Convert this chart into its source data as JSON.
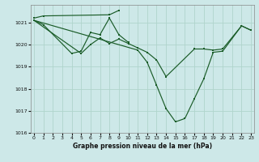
{
  "xlabel": "Graphe pression niveau de la mer (hPa)",
  "bg_color": "#cde8e8",
  "grid_color": "#b0d4cc",
  "line_color": "#1a5c28",
  "ylim": [
    1016.0,
    1021.8
  ],
  "xlim": [
    -0.3,
    23.3
  ],
  "yticks": [
    1016,
    1017,
    1018,
    1019,
    1020,
    1021
  ],
  "xticks": [
    0,
    1,
    2,
    3,
    4,
    5,
    6,
    7,
    8,
    9,
    10,
    11,
    12,
    13,
    14,
    15,
    16,
    17,
    18,
    19,
    20,
    21,
    22,
    23
  ],
  "line1": {
    "x": [
      0,
      1,
      8,
      9
    ],
    "y": [
      1021.2,
      1021.3,
      1021.35,
      1021.55
    ]
  },
  "line2": {
    "x": [
      0,
      1,
      4,
      5,
      6,
      7,
      8,
      9,
      10
    ],
    "y": [
      1021.1,
      1020.9,
      1019.6,
      1019.7,
      1020.55,
      1020.45,
      1021.2,
      1020.45,
      1020.1
    ]
  },
  "line3": {
    "x": [
      0,
      5,
      6,
      7,
      8,
      9,
      10,
      11,
      12,
      13,
      14,
      17,
      18,
      19,
      20,
      22,
      23
    ],
    "y": [
      1021.1,
      1019.6,
      1020.0,
      1020.3,
      1020.05,
      1020.25,
      1020.05,
      1019.85,
      1019.65,
      1019.3,
      1018.55,
      1019.8,
      1019.8,
      1019.75,
      1019.8,
      1020.85,
      1020.65
    ]
  },
  "line4": {
    "x": [
      0,
      11,
      12,
      13,
      14,
      15,
      16,
      17,
      18,
      19,
      20,
      22,
      23
    ],
    "y": [
      1021.1,
      1019.75,
      1019.2,
      1018.15,
      1017.1,
      1016.5,
      1016.65,
      1017.55,
      1018.45,
      1019.65,
      1019.7,
      1020.85,
      1020.65
    ]
  }
}
